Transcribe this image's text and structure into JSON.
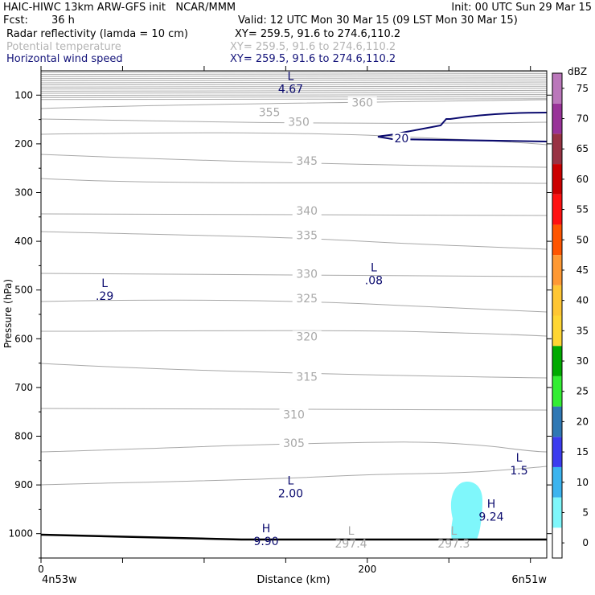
{
  "header": {
    "line1_left": "HAIC-HIWC 13km ARW-GFS init   NCAR/MMM",
    "line1_right": "Init: 00 UTC Sun 29 Mar 15",
    "fcst_label": "Fcst:",
    "fcst_value": "36 h",
    "valid": "Valid: 12 UTC Mon 30 Mar 15 (09 LST Mon 30 Mar 15)",
    "fields": [
      {
        "name": "Radar reflectivity (lamda = 10 cm)",
        "xy": "XY= 259.5, 91.6 to 274.6,110.2",
        "color": "#000000"
      },
      {
        "name": "Potential temperature",
        "xy": "XY= 259.5, 91.6 to 274.6,110.2",
        "color": "#b4b4b4"
      },
      {
        "name": "Horizontal wind speed",
        "xy": "XY= 259.5, 91.6 to 274.6,110.2",
        "color": "#14147a"
      }
    ]
  },
  "colors": {
    "theta": "#a8a8a8",
    "wind": "#0a0a6e",
    "refl": "#7ff7fb",
    "ground": "#000000"
  },
  "chart_data": {
    "type": "cross-section",
    "xlabel": "Distance (km)",
    "ylabel": "Pressure (hPa)",
    "xlim": [
      0,
      310
    ],
    "ylim": [
      1050,
      50
    ],
    "x_ticks": [
      0,
      200
    ],
    "x_tick_labels": [
      "0",
      "200"
    ],
    "y_ticks": [
      100,
      200,
      300,
      400,
      500,
      600,
      700,
      800,
      900,
      1000
    ],
    "x_end_labels": [
      "4n53w",
      "6n51w"
    ],
    "potential_temperature": {
      "contour_labels": [
        {
          "text": "360",
          "x": 197,
          "p": 120
        },
        {
          "text": "355",
          "x": 140,
          "p": 140
        },
        {
          "text": "350",
          "x": 158,
          "p": 160
        },
        {
          "text": "345",
          "x": 163,
          "p": 240
        },
        {
          "text": "340",
          "x": 163,
          "p": 342
        },
        {
          "text": "335",
          "x": 163,
          "p": 392
        },
        {
          "text": "330",
          "x": 163,
          "p": 472
        },
        {
          "text": "325",
          "x": 163,
          "p": 522
        },
        {
          "text": "320",
          "x": 163,
          "p": 600
        },
        {
          "text": "315",
          "x": 163,
          "p": 683
        },
        {
          "text": "310",
          "x": 155,
          "p": 760
        },
        {
          "text": "305",
          "x": 155,
          "p": 819
        }
      ],
      "low_centers": [
        {
          "symbol": "L",
          "value": "297.4",
          "x": 190,
          "p": 1015
        },
        {
          "symbol": "L",
          "value": "297.3",
          "x": 253,
          "p": 1015
        }
      ]
    },
    "wind_speed": {
      "contour_labels": [
        {
          "text": "20",
          "x": 221,
          "p": 190
        }
      ],
      "centers": [
        {
          "symbol": "L",
          "value": "4.67",
          "x": 153,
          "p": 82
        },
        {
          "symbol": "L",
          "value": ".08",
          "x": 204,
          "p": 475
        },
        {
          "symbol": "L",
          "value": ".29",
          "x": 39,
          "p": 507
        },
        {
          "symbol": "L",
          "value": "1.5",
          "x": 293,
          "p": 865
        },
        {
          "symbol": "L",
          "value": "2.00",
          "x": 153,
          "p": 912
        },
        {
          "symbol": "H",
          "value": "9.24",
          "x": 276,
          "p": 960
        },
        {
          "symbol": "H",
          "value": "9.90",
          "x": 138,
          "p": 1010
        }
      ]
    },
    "reflectivity_colorbar": {
      "unit": "dBZ",
      "levels": [
        0,
        5,
        10,
        15,
        20,
        25,
        30,
        35,
        40,
        45,
        50,
        55,
        60,
        65,
        70,
        75
      ],
      "colors": [
        "#ffffff",
        "#7ff7fb",
        "#3cb4ef",
        "#3c3cef",
        "#2f78b4",
        "#33ee33",
        "#00aa00",
        "#ffd633",
        "#ffc633",
        "#ff9933",
        "#ff5500",
        "#ff1111",
        "#cc0000",
        "#993344",
        "#993399",
        "#bb77bb"
      ]
    }
  }
}
